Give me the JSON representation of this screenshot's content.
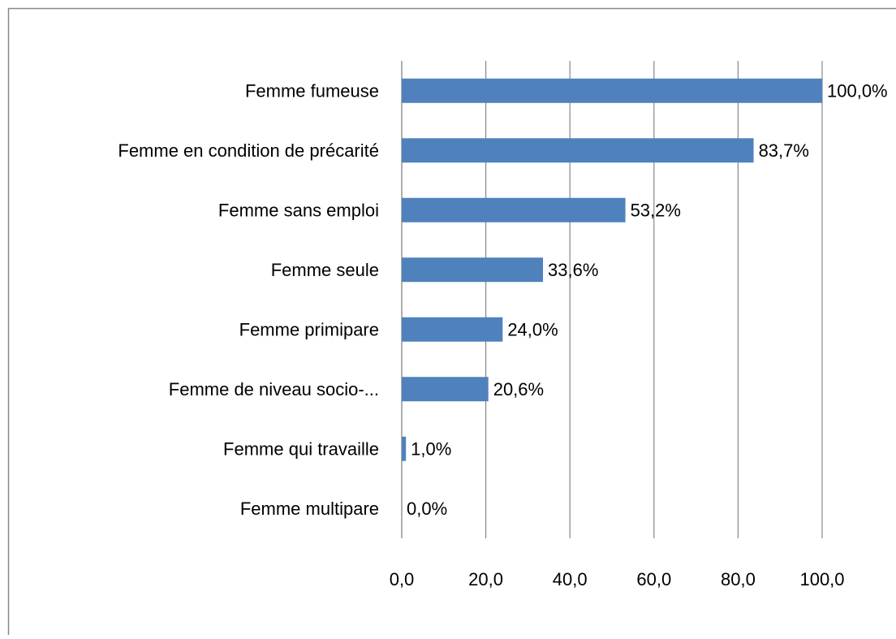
{
  "chart_data": {
    "type": "bar",
    "orientation": "horizontal",
    "categories": [
      "Femme fumeuse",
      "Femme en condition de précarité",
      "Femme sans emploi",
      "Femme seule",
      "Femme primipare",
      "Femme de niveau socio-...",
      "Femme qui travaille",
      "Femme multipare"
    ],
    "values": [
      100.0,
      83.7,
      53.2,
      33.6,
      24.0,
      20.6,
      1.0,
      0.0
    ],
    "value_labels": [
      "100,0%",
      "83,7%",
      "53,2%",
      "33,6%",
      "24,0%",
      "20,6%",
      "1,0%",
      "0,0%"
    ],
    "color": "#4f81bd",
    "xlim": [
      0,
      100
    ],
    "xticks": [
      {
        "value": 0,
        "label": "0,0"
      },
      {
        "value": 20,
        "label": "20,0"
      },
      {
        "value": 40,
        "label": "40,0"
      },
      {
        "value": 60,
        "label": "60,0"
      },
      {
        "value": 80,
        "label": "80,0"
      },
      {
        "value": 100,
        "label": "100,0"
      }
    ],
    "grid": true
  }
}
